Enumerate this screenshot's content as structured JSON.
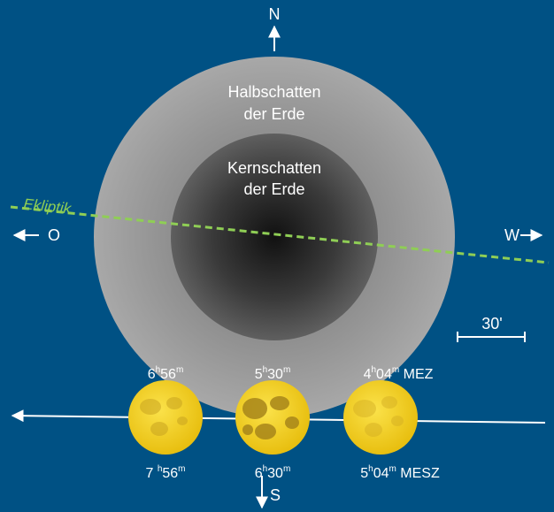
{
  "colors": {
    "background": "#005184",
    "penumbra": "#9d9d9d",
    "umbra_center": "#111111",
    "umbra_edge": "#5f5f5f",
    "ecliptic": "#8fce55",
    "moon": "#f5d21e",
    "moon_shadow": "#c4a21c",
    "text": "#ffffff"
  },
  "compass": {
    "north": "N",
    "south": "S",
    "east": "O",
    "west": "W"
  },
  "penumbra_label": {
    "line1": "Halbschatten",
    "line2": "der Erde"
  },
  "umbra_label": {
    "line1": "Kernschatten",
    "line2": "der Erde"
  },
  "ecliptic_label": "Ekliptik",
  "scale_label": "30'",
  "moons": [
    {
      "top": {
        "h": "6",
        "hs": "h",
        "m": "56",
        "ms": "m",
        "zone": ""
      },
      "bottom": {
        "h": "7 ",
        "hs": "h",
        "m": "56",
        "ms": "m",
        "zone": ""
      }
    },
    {
      "top": {
        "h": "5",
        "hs": "h",
        "m": "30",
        "ms": "m",
        "zone": ""
      },
      "bottom": {
        "h": "6",
        "hs": "h",
        "m": "30",
        "ms": "m",
        "zone": ""
      }
    },
    {
      "top": {
        "h": "4",
        "hs": "h",
        "m": "04",
        "ms": "m",
        "zone": " MEZ"
      },
      "bottom": {
        "h": "5",
        "hs": "h",
        "m": "04",
        "ms": "m",
        "zone": " MESZ"
      }
    }
  ]
}
